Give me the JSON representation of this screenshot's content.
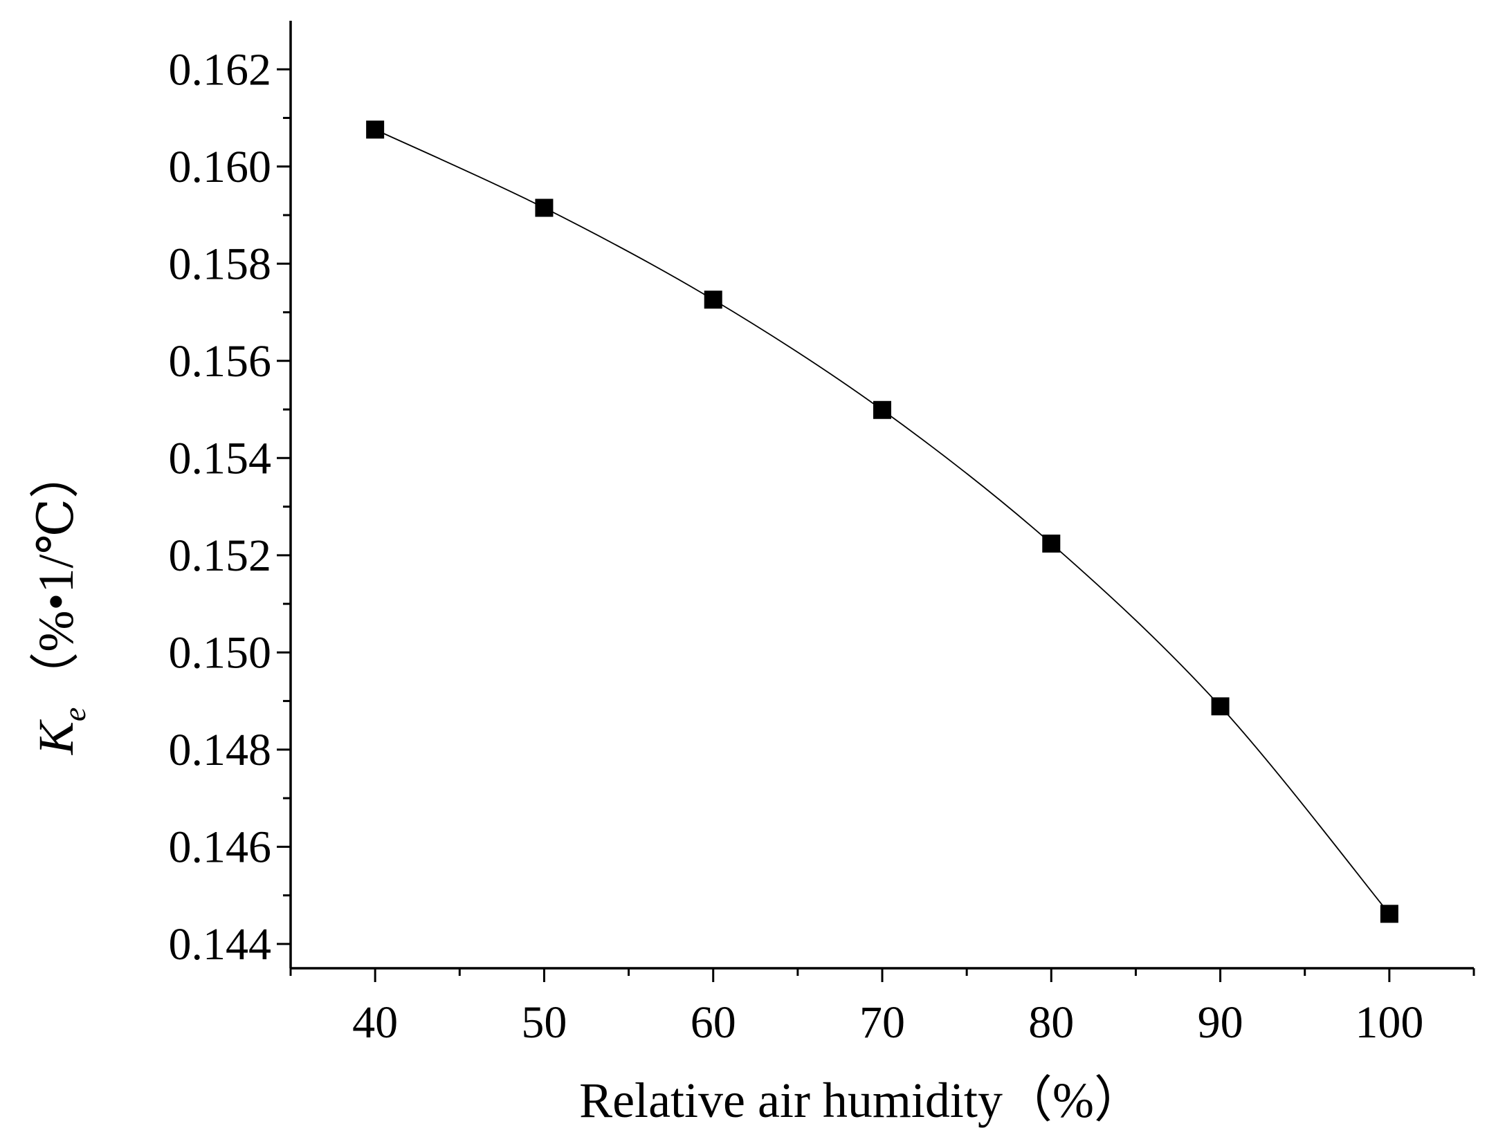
{
  "chart_data": {
    "type": "scatter",
    "title": "",
    "xlabel": "Relative air humidity（%）",
    "ylabel": {
      "symbol": "K",
      "subscript": "e",
      "unit": "（%•1/℃）"
    },
    "xlim": [
      35,
      105
    ],
    "ylim": [
      0.1435,
      0.163
    ],
    "x_ticks": [
      40,
      50,
      60,
      70,
      80,
      90,
      100
    ],
    "x_tick_labels": [
      "40",
      "50",
      "60",
      "70",
      "80",
      "90",
      "100"
    ],
    "x_minor_ticks": [
      35,
      45,
      55,
      65,
      75,
      85,
      95,
      105
    ],
    "y_ticks": [
      0.144,
      0.146,
      0.148,
      0.15,
      0.152,
      0.154,
      0.156,
      0.158,
      0.16,
      0.162
    ],
    "y_tick_labels": [
      "0.144",
      "0.146",
      "0.148",
      "0.150",
      "0.152",
      "0.154",
      "0.156",
      "0.158",
      "0.160",
      "0.162"
    ],
    "y_minor_ticks": [
      0.145,
      0.147,
      0.149,
      0.151,
      0.153,
      0.155,
      0.157,
      0.159,
      0.161
    ],
    "grid": false,
    "legend": "none",
    "series": [
      {
        "marker": "square",
        "color": "#000000",
        "x": [
          40,
          50,
          60,
          70,
          80,
          90,
          100
        ],
        "y": [
          0.16076,
          0.15915,
          0.15726,
          0.15499,
          0.15224,
          0.14889,
          0.14462
        ]
      }
    ],
    "fit_curve": {
      "style": "smooth line through points",
      "color": "#000000"
    }
  }
}
